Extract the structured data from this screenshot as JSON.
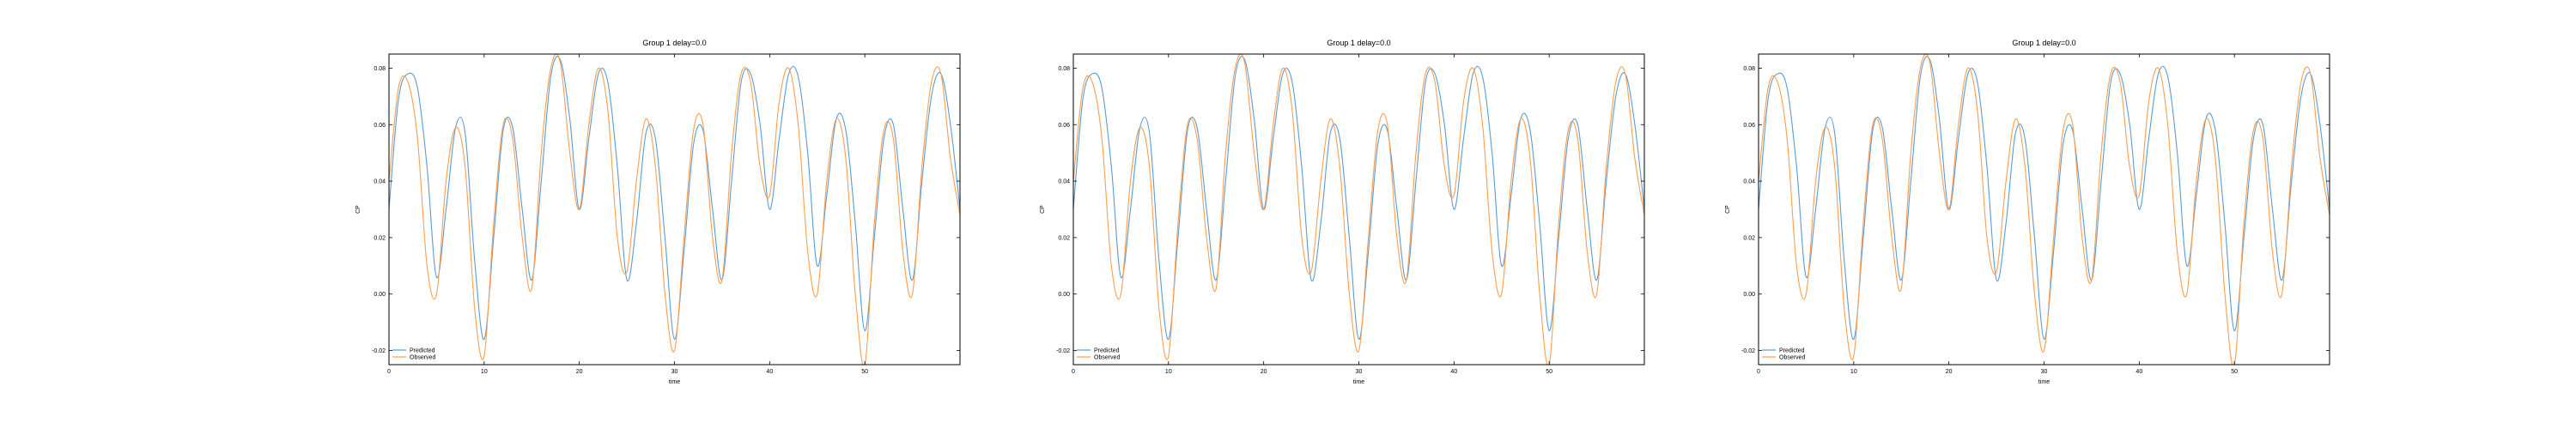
{
  "figure": {
    "colors": {
      "predicted": "#5b9bd5",
      "observed": "#ff9d4d",
      "axis": "#000000"
    }
  },
  "chart_data": [
    {
      "type": "line",
      "title": "Group 1 delay=0.0",
      "xlabel": "time",
      "ylabel": "CP",
      "xlim": [
        0,
        60
      ],
      "ylim": [
        -0.025,
        0.085
      ],
      "x_ticks": [
        0,
        10,
        20,
        30,
        40,
        50
      ],
      "y_ticks": [
        -0.02,
        0.0,
        0.02,
        0.04,
        0.06,
        0.08
      ],
      "y_tick_labels": [
        "-0.02",
        "0.00",
        "0.02",
        "0.04",
        "0.06",
        "0.08"
      ],
      "grid": false,
      "legend_position": "lower-left",
      "series": [
        {
          "name": "Predicted",
          "color": "#5b9bd5",
          "x": [
            0,
            1,
            2,
            3,
            4,
            5,
            6,
            7,
            8,
            9,
            10,
            11,
            12,
            13,
            14,
            15,
            16,
            17,
            18,
            19,
            20,
            21,
            22,
            23,
            24,
            25,
            26,
            27,
            28,
            29,
            30,
            31,
            32,
            33,
            34,
            35,
            36,
            37,
            38,
            39,
            40,
            41,
            42,
            43,
            44,
            45,
            46,
            47,
            48,
            49,
            50,
            51,
            52,
            53,
            54,
            55,
            56,
            57,
            58,
            59,
            60
          ],
          "y": [
            0.03,
            0.069,
            0.078,
            0.073,
            0.045,
            0.006,
            0.03,
            0.059,
            0.057,
            0.012,
            -0.016,
            0.02,
            0.058,
            0.059,
            0.03,
            0.005,
            0.04,
            0.077,
            0.083,
            0.062,
            0.03,
            0.055,
            0.078,
            0.075,
            0.045,
            0.005,
            0.025,
            0.057,
            0.055,
            0.02,
            -0.016,
            0.015,
            0.053,
            0.058,
            0.03,
            0.005,
            0.04,
            0.075,
            0.078,
            0.06,
            0.03,
            0.055,
            0.078,
            0.077,
            0.05,
            0.01,
            0.035,
            0.062,
            0.058,
            0.025,
            -0.013,
            0.02,
            0.055,
            0.06,
            0.03,
            0.005,
            0.04,
            0.07,
            0.078,
            0.06,
            0.03
          ]
        },
        {
          "name": "Observed",
          "color": "#ff9d4d",
          "x": [
            0,
            1,
            2,
            3,
            4,
            5,
            6,
            7,
            8,
            9,
            10,
            11,
            12,
            13,
            14,
            15,
            16,
            17,
            18,
            19,
            20,
            21,
            22,
            23,
            24,
            25,
            26,
            27,
            28,
            29,
            30,
            31,
            32,
            33,
            34,
            35,
            36,
            37,
            38,
            39,
            40,
            41,
            42,
            43,
            44,
            45,
            46,
            47,
            48,
            49,
            50,
            51,
            52,
            53,
            54,
            55,
            56,
            57,
            58,
            59,
            60
          ],
          "y": [
            0.04,
            0.073,
            0.075,
            0.055,
            0.01,
            0.0,
            0.04,
            0.059,
            0.045,
            -0.005,
            -0.022,
            0.025,
            0.06,
            0.055,
            0.02,
            0.002,
            0.05,
            0.08,
            0.082,
            0.05,
            0.03,
            0.06,
            0.08,
            0.065,
            0.02,
            0.008,
            0.04,
            0.062,
            0.045,
            0.0,
            -0.02,
            0.02,
            0.058,
            0.06,
            0.02,
            0.005,
            0.05,
            0.078,
            0.075,
            0.045,
            0.035,
            0.068,
            0.08,
            0.06,
            0.015,
            0.0,
            0.04,
            0.062,
            0.048,
            0.0,
            -0.025,
            0.025,
            0.058,
            0.055,
            0.015,
            0.0,
            0.045,
            0.075,
            0.078,
            0.048,
            0.028
          ]
        }
      ]
    },
    {
      "type": "line",
      "title": "Group 1 delay=0.0",
      "xlabel": "time",
      "ylabel": "CP",
      "xlim": [
        0,
        60
      ],
      "ylim": [
        -0.025,
        0.085
      ],
      "x_ticks": [
        0,
        10,
        20,
        30,
        40,
        50
      ],
      "y_ticks": [
        -0.02,
        0.0,
        0.02,
        0.04,
        0.06,
        0.08
      ],
      "y_tick_labels": [
        "-0.02",
        "0.00",
        "0.02",
        "0.04",
        "0.06",
        "0.08"
      ],
      "grid": false,
      "legend_position": "lower-left",
      "series": [
        {
          "name": "Predicted",
          "color": "#5b9bd5",
          "x": [
            0,
            1,
            2,
            3,
            4,
            5,
            6,
            7,
            8,
            9,
            10,
            11,
            12,
            13,
            14,
            15,
            16,
            17,
            18,
            19,
            20,
            21,
            22,
            23,
            24,
            25,
            26,
            27,
            28,
            29,
            30,
            31,
            32,
            33,
            34,
            35,
            36,
            37,
            38,
            39,
            40,
            41,
            42,
            43,
            44,
            45,
            46,
            47,
            48,
            49,
            50,
            51,
            52,
            53,
            54,
            55,
            56,
            57,
            58,
            59,
            60
          ],
          "y": [
            0.03,
            0.069,
            0.078,
            0.073,
            0.045,
            0.006,
            0.03,
            0.059,
            0.057,
            0.012,
            -0.016,
            0.02,
            0.058,
            0.059,
            0.03,
            0.005,
            0.04,
            0.077,
            0.083,
            0.062,
            0.03,
            0.055,
            0.078,
            0.075,
            0.045,
            0.005,
            0.025,
            0.057,
            0.055,
            0.02,
            -0.016,
            0.015,
            0.053,
            0.058,
            0.03,
            0.005,
            0.04,
            0.075,
            0.078,
            0.06,
            0.03,
            0.055,
            0.078,
            0.077,
            0.05,
            0.01,
            0.035,
            0.062,
            0.058,
            0.025,
            -0.013,
            0.02,
            0.055,
            0.06,
            0.03,
            0.005,
            0.04,
            0.07,
            0.078,
            0.06,
            0.03
          ]
        },
        {
          "name": "Observed",
          "color": "#ff9d4d",
          "x": [
            0,
            1,
            2,
            3,
            4,
            5,
            6,
            7,
            8,
            9,
            10,
            11,
            12,
            13,
            14,
            15,
            16,
            17,
            18,
            19,
            20,
            21,
            22,
            23,
            24,
            25,
            26,
            27,
            28,
            29,
            30,
            31,
            32,
            33,
            34,
            35,
            36,
            37,
            38,
            39,
            40,
            41,
            42,
            43,
            44,
            45,
            46,
            47,
            48,
            49,
            50,
            51,
            52,
            53,
            54,
            55,
            56,
            57,
            58,
            59,
            60
          ],
          "y": [
            0.04,
            0.073,
            0.075,
            0.055,
            0.01,
            0.0,
            0.04,
            0.059,
            0.045,
            -0.005,
            -0.022,
            0.025,
            0.06,
            0.055,
            0.02,
            0.002,
            0.05,
            0.08,
            0.082,
            0.05,
            0.03,
            0.06,
            0.08,
            0.065,
            0.02,
            0.008,
            0.04,
            0.062,
            0.045,
            0.0,
            -0.02,
            0.02,
            0.058,
            0.06,
            0.02,
            0.005,
            0.05,
            0.078,
            0.075,
            0.045,
            0.035,
            0.068,
            0.08,
            0.06,
            0.015,
            0.0,
            0.04,
            0.062,
            0.048,
            0.0,
            -0.025,
            0.025,
            0.058,
            0.055,
            0.015,
            0.0,
            0.045,
            0.075,
            0.078,
            0.048,
            0.028
          ]
        }
      ]
    },
    {
      "type": "line",
      "title": "Group 1 delay=0.0",
      "xlabel": "time",
      "ylabel": "CP",
      "xlim": [
        0,
        60
      ],
      "ylim": [
        -0.025,
        0.085
      ],
      "x_ticks": [
        0,
        10,
        20,
        30,
        40,
        50
      ],
      "y_ticks": [
        -0.02,
        0.0,
        0.02,
        0.04,
        0.06,
        0.08
      ],
      "y_tick_labels": [
        "-0.02",
        "0.00",
        "0.02",
        "0.04",
        "0.06",
        "0.08"
      ],
      "grid": false,
      "legend_position": "lower-left",
      "series": [
        {
          "name": "Predicted",
          "color": "#5b9bd5",
          "x": [
            0,
            1,
            2,
            3,
            4,
            5,
            6,
            7,
            8,
            9,
            10,
            11,
            12,
            13,
            14,
            15,
            16,
            17,
            18,
            19,
            20,
            21,
            22,
            23,
            24,
            25,
            26,
            27,
            28,
            29,
            30,
            31,
            32,
            33,
            34,
            35,
            36,
            37,
            38,
            39,
            40,
            41,
            42,
            43,
            44,
            45,
            46,
            47,
            48,
            49,
            50,
            51,
            52,
            53,
            54,
            55,
            56,
            57,
            58,
            59,
            60
          ],
          "y": [
            0.03,
            0.069,
            0.078,
            0.073,
            0.045,
            0.006,
            0.03,
            0.059,
            0.057,
            0.012,
            -0.016,
            0.02,
            0.058,
            0.059,
            0.03,
            0.005,
            0.04,
            0.077,
            0.083,
            0.062,
            0.03,
            0.055,
            0.078,
            0.075,
            0.045,
            0.005,
            0.025,
            0.057,
            0.055,
            0.02,
            -0.016,
            0.015,
            0.053,
            0.058,
            0.03,
            0.005,
            0.04,
            0.075,
            0.078,
            0.06,
            0.03,
            0.055,
            0.078,
            0.077,
            0.05,
            0.01,
            0.035,
            0.062,
            0.058,
            0.025,
            -0.013,
            0.02,
            0.055,
            0.06,
            0.03,
            0.005,
            0.04,
            0.07,
            0.078,
            0.06,
            0.03
          ]
        },
        {
          "name": "Observed",
          "color": "#ff9d4d",
          "x": [
            0,
            1,
            2,
            3,
            4,
            5,
            6,
            7,
            8,
            9,
            10,
            11,
            12,
            13,
            14,
            15,
            16,
            17,
            18,
            19,
            20,
            21,
            22,
            23,
            24,
            25,
            26,
            27,
            28,
            29,
            30,
            31,
            32,
            33,
            34,
            35,
            36,
            37,
            38,
            39,
            40,
            41,
            42,
            43,
            44,
            45,
            46,
            47,
            48,
            49,
            50,
            51,
            52,
            53,
            54,
            55,
            56,
            57,
            58,
            59,
            60
          ],
          "y": [
            0.04,
            0.073,
            0.075,
            0.055,
            0.01,
            0.0,
            0.04,
            0.059,
            0.045,
            -0.005,
            -0.022,
            0.025,
            0.06,
            0.055,
            0.02,
            0.002,
            0.05,
            0.08,
            0.082,
            0.05,
            0.03,
            0.06,
            0.08,
            0.065,
            0.02,
            0.008,
            0.04,
            0.062,
            0.045,
            0.0,
            -0.02,
            0.02,
            0.058,
            0.06,
            0.02,
            0.005,
            0.05,
            0.078,
            0.075,
            0.045,
            0.035,
            0.068,
            0.08,
            0.06,
            0.015,
            0.0,
            0.04,
            0.062,
            0.048,
            0.0,
            -0.025,
            0.025,
            0.058,
            0.055,
            0.015,
            0.0,
            0.045,
            0.075,
            0.078,
            0.048,
            0.028
          ]
        }
      ]
    }
  ]
}
